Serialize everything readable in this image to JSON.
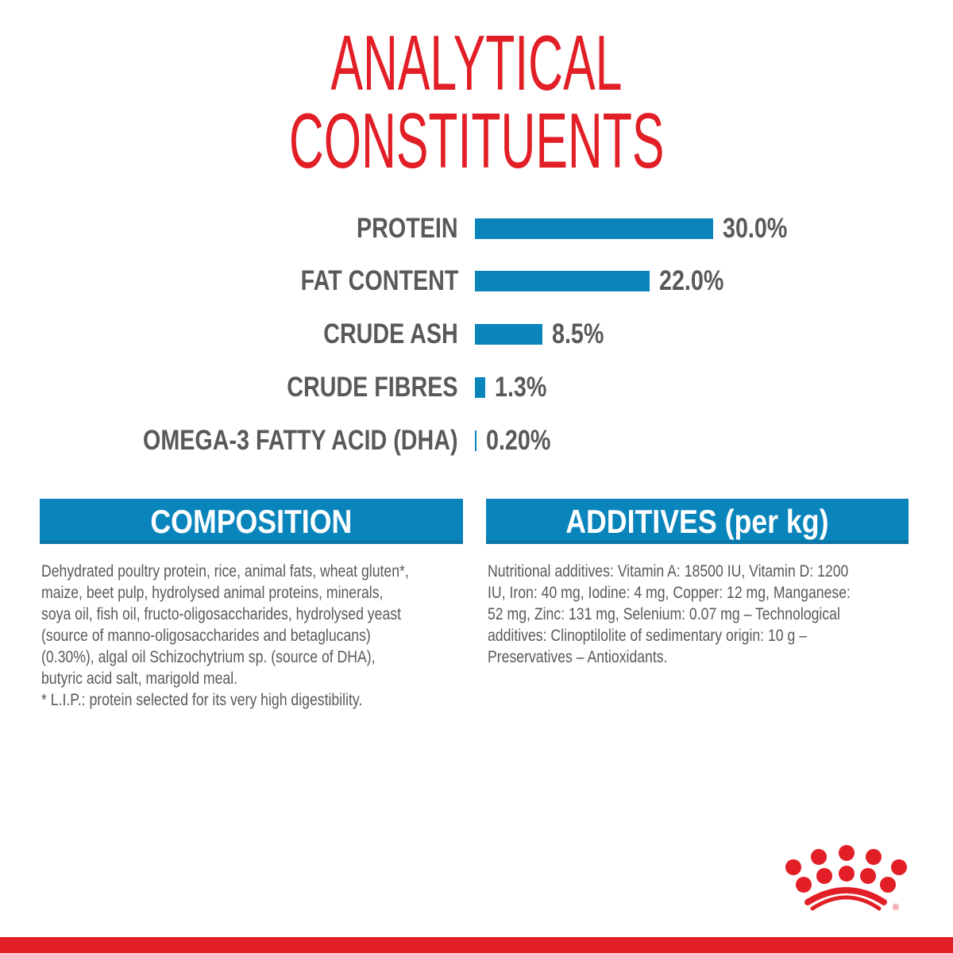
{
  "title": {
    "line1": "ANALYTICAL",
    "line2": "CONSTITUENTS"
  },
  "colors": {
    "title": "#e21e26",
    "bar": "#0a85bc",
    "text": "#58595b",
    "brand_red": "#e21e26"
  },
  "chart_data": {
    "type": "bar",
    "orientation": "horizontal",
    "title": "ANALYTICAL CONSTITUENTS",
    "categories": [
      "PROTEIN",
      "FAT CONTENT",
      "CRUDE ASH",
      "CRUDE FIBRES",
      "OMEGA-3 FATTY ACID (DHA)"
    ],
    "values": [
      30.0,
      22.0,
      8.5,
      1.3,
      0.2
    ],
    "data_labels": [
      "30.0%",
      "22.0%",
      "8.5%",
      "1.3%",
      "0.20%"
    ],
    "unit": "%",
    "grid": false
  },
  "composition": {
    "heading": "COMPOSITION",
    "lines": [
      "Dehydrated poultry protein, rice, animal fats, wheat gluten*,",
      "maize, beet pulp, hydrolysed animal proteins, minerals,",
      "soya oil, fish oil, fructo-oligosaccharides, hydrolysed yeast",
      "(source of manno-oligosaccharides and betaglucans)",
      "(0.30%), algal oil Schizochytrium sp. (source of DHA),",
      "butyric acid salt, marigold meal.",
      "* L.I.P.: protein selected for its very high digestibility."
    ]
  },
  "additives": {
    "heading": "ADDITIVES (per kg)",
    "lines": [
      "Nutritional additives: Vitamin A: 18500 IU, Vitamin D: 1200",
      "IU, Iron: 40 mg, Iodine: 4 mg, Copper: 12 mg, Manganese:",
      "52 mg, Zinc: 131 mg, Selenium: 0.07 mg – Technological",
      "additives: Clinoptilolite of sedimentary origin: 10 g –",
      "Preservatives – Antioxidants."
    ]
  },
  "logo": {
    "icon": "royal-canin-crown-logo",
    "mark": "®"
  }
}
